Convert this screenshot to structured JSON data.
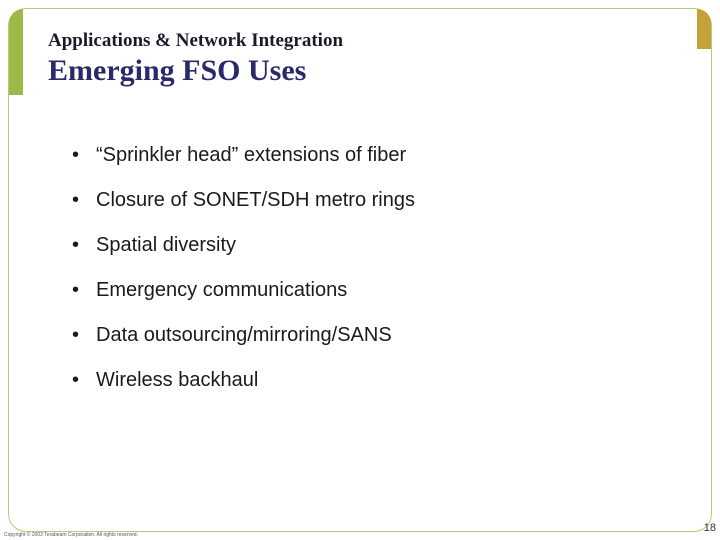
{
  "header": {
    "subtitle": "Applications & Network Integration",
    "title": "Emerging FSO Uses"
  },
  "bullets": [
    "“Sprinkler head” extensions of fiber",
    "Closure of SONET/SDH metro rings",
    "Spatial diversity",
    "Emergency communications",
    "Data outsourcing/mirroring/SANS",
    "Wireless backhaul"
  ],
  "footer": {
    "copyright": "Copyright © 2002 Terabeam Corporation. All rights reserved.",
    "page": "18"
  },
  "colors": {
    "frame_border": "#b8c97a",
    "left_accent": "#9fb84a",
    "right_accent": "#c8a03a",
    "title_color": "#2a2a6a",
    "subtitle_color": "#1a1a2a",
    "text_color": "#1a1a1a",
    "background": "#ffffff"
  },
  "typography": {
    "subtitle_fontsize": 19,
    "title_fontsize": 30,
    "bullet_fontsize": 20,
    "title_font": "Times New Roman",
    "bullet_font": "Verdana"
  }
}
